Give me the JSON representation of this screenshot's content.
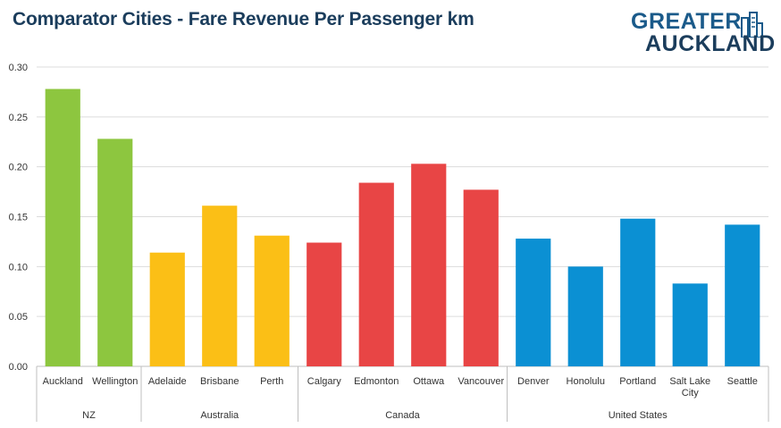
{
  "header": {
    "title": "Comparator Cities - Fare Revenue Per Passenger km",
    "logo_line1": "GREATER",
    "logo_line2": "AUCKLAND"
  },
  "colors": {
    "NZ": "#8dc63f",
    "Australia": "#fbbf16",
    "Canada": "#e84545",
    "United States": "#0b90d3",
    "grid": "#dcdcdc",
    "title": "#1b3d5c"
  },
  "chart_data": {
    "type": "bar",
    "title": "Comparator Cities - Fare Revenue Per Passenger km",
    "xlabel": "",
    "ylabel": "",
    "ylim": [
      0,
      0.3
    ],
    "yticks": [
      "0.00",
      "0.05",
      "0.10",
      "0.15",
      "0.20",
      "0.25",
      "0.30"
    ],
    "grid": true,
    "categories": [
      "Auckland",
      "Wellington",
      "Adelaide",
      "Brisbane",
      "Perth",
      "Calgary",
      "Edmonton",
      "Ottawa",
      "Vancouver",
      "Denver",
      "Honolulu",
      "Portland",
      "Salt Lake City",
      "Seattle"
    ],
    "category_labels": [
      [
        "Auckland"
      ],
      [
        "Wellington"
      ],
      [
        "Adelaide"
      ],
      [
        "Brisbane"
      ],
      [
        "Perth"
      ],
      [
        "Calgary"
      ],
      [
        "Edmonton"
      ],
      [
        "Ottawa"
      ],
      [
        "Vancouver"
      ],
      [
        "Denver"
      ],
      [
        "Honolulu"
      ],
      [
        "Portland"
      ],
      [
        "Salt Lake",
        "City"
      ],
      [
        "Seattle"
      ]
    ],
    "values": [
      0.278,
      0.228,
      0.114,
      0.161,
      0.131,
      0.124,
      0.184,
      0.203,
      0.177,
      0.128,
      0.1,
      0.148,
      0.083,
      0.142
    ],
    "groups": [
      {
        "name": "NZ",
        "count": 2
      },
      {
        "name": "Australia",
        "count": 3
      },
      {
        "name": "Canada",
        "count": 4
      },
      {
        "name": "United States",
        "count": 5
      }
    ]
  }
}
